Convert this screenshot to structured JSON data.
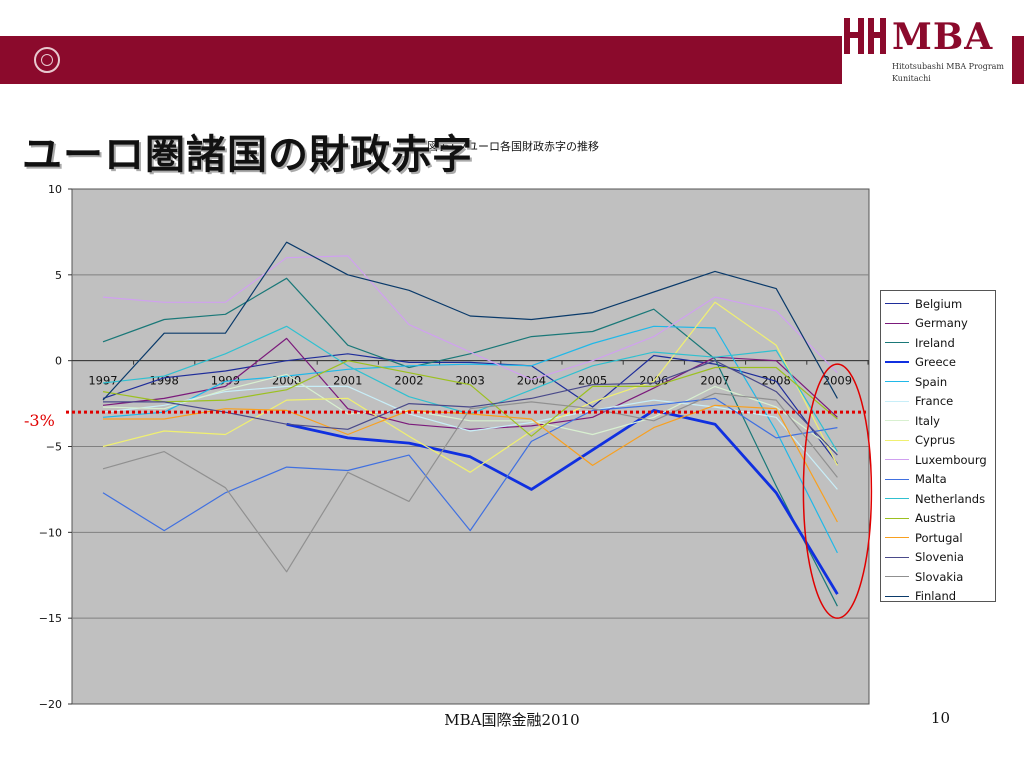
{
  "slide": {
    "title": "ユーロ圏諸国の財政赤字",
    "footer": "MBA国際金融2010",
    "page_number": "10",
    "threshold_label": "-3%"
  },
  "logo": {
    "wordmark": "MBA",
    "line1": "Hitotsubashi MBA Program",
    "line2": "Kunitachi",
    "brand_color": "#8b0a2c"
  },
  "chart_data": {
    "type": "line",
    "title": "図表1-7ユーロ各国財政赤字の推移",
    "x": [
      "1997",
      "1998",
      "1999",
      "2000",
      "2001",
      "2002",
      "2003",
      "2004",
      "2005",
      "2006",
      "2007",
      "2008",
      "2009"
    ],
    "ylim": [
      -20,
      10
    ],
    "yticks": [
      "10",
      "5",
      "0",
      "−5",
      "−10",
      "−15",
      "−20"
    ],
    "grid": true,
    "legend_position": "right",
    "reference_line": {
      "y": -3,
      "color": "#e00000",
      "style": "dotted"
    },
    "highlight": {
      "x": "2009",
      "shape": "ellipse",
      "color": "#e00000"
    },
    "series": [
      {
        "name": "Belgium",
        "color": "#1f2d9a",
        "width": 1.2,
        "values": [
          -2.2,
          -1.0,
          -0.6,
          0.0,
          0.4,
          -0.1,
          -0.1,
          -0.3,
          -2.7,
          0.3,
          -0.2,
          -1.2,
          -6.0
        ]
      },
      {
        "name": "Germany",
        "color": "#7b1a7b",
        "width": 1.2,
        "values": [
          -2.6,
          -2.2,
          -1.5,
          1.3,
          -2.8,
          -3.7,
          -4.0,
          -3.8,
          -3.3,
          -1.6,
          0.2,
          0.0,
          -3.3
        ]
      },
      {
        "name": "Ireland",
        "color": "#1a7878",
        "width": 1.2,
        "values": [
          1.1,
          2.4,
          2.7,
          4.8,
          0.9,
          -0.4,
          0.4,
          1.4,
          1.7,
          3.0,
          0.1,
          -7.3,
          -14.3
        ]
      },
      {
        "name": "Greece",
        "color": "#1030e0",
        "width": 2.8,
        "values": [
          null,
          null,
          null,
          -3.7,
          -4.5,
          -4.8,
          -5.6,
          -7.5,
          -5.2,
          -2.9,
          -3.7,
          -7.7,
          -13.6
        ]
      },
      {
        "name": "Spain",
        "color": "#20b8e8",
        "width": 1.2,
        "values": [
          -3.3,
          -3.0,
          -1.2,
          -0.9,
          -0.5,
          -0.3,
          -0.2,
          -0.3,
          1.0,
          2.0,
          1.9,
          -4.1,
          -11.2
        ]
      },
      {
        "name": "France",
        "color": "#c8eef8",
        "width": 1.2,
        "values": [
          -3.0,
          -2.6,
          -1.8,
          -1.5,
          -1.5,
          -3.1,
          -4.1,
          -3.6,
          -2.9,
          -2.3,
          -2.7,
          -3.3,
          -7.5
        ]
      },
      {
        "name": "Italy",
        "color": "#d8f0d0",
        "width": 1.2,
        "values": [
          -2.7,
          -2.8,
          -1.7,
          -0.8,
          -3.1,
          -2.9,
          -3.5,
          -3.5,
          -4.3,
          -3.3,
          -1.5,
          -2.7,
          -5.3
        ]
      },
      {
        "name": "Cyprus",
        "color": "#f0f070",
        "width": 1.2,
        "values": [
          -5.0,
          -4.1,
          -4.3,
          -2.3,
          -2.2,
          -4.4,
          -6.5,
          -4.1,
          -2.4,
          -1.2,
          3.4,
          0.9,
          -6.1
        ]
      },
      {
        "name": "Luxembourg",
        "color": "#d0a0f0",
        "width": 1.2,
        "values": [
          3.7,
          3.4,
          3.4,
          6.0,
          6.1,
          2.1,
          0.5,
          -1.1,
          0.0,
          1.4,
          3.7,
          2.9,
          -0.7
        ]
      },
      {
        "name": "Malta",
        "color": "#4070e0",
        "width": 1.2,
        "values": [
          -7.7,
          -9.9,
          -7.7,
          -6.2,
          -6.4,
          -5.5,
          -9.9,
          -4.7,
          -2.9,
          -2.6,
          -2.2,
          -4.5,
          -3.9
        ]
      },
      {
        "name": "Netherlands",
        "color": "#30c0d0",
        "width": 1.2,
        "values": [
          -1.3,
          -0.9,
          0.4,
          2.0,
          -0.3,
          -2.1,
          -3.1,
          -1.7,
          -0.3,
          0.5,
          0.2,
          0.6,
          -5.3
        ]
      },
      {
        "name": "Austria",
        "color": "#9cc020",
        "width": 1.2,
        "values": [
          -1.8,
          -2.4,
          -2.3,
          -1.7,
          0.0,
          -0.7,
          -1.4,
          -4.4,
          -1.5,
          -1.5,
          -0.4,
          -0.4,
          -3.4
        ]
      },
      {
        "name": "Portugal",
        "color": "#f8a020",
        "width": 1.2,
        "values": [
          -3.4,
          -3.4,
          -2.8,
          -2.9,
          -4.3,
          -2.9,
          -3.1,
          -3.4,
          -6.1,
          -3.9,
          -2.6,
          -2.8,
          -9.4
        ]
      },
      {
        "name": "Slovenia",
        "color": "#4a4a8a",
        "width": 1.2,
        "values": [
          -2.4,
          -2.4,
          -3.0,
          -3.7,
          -4.0,
          -2.5,
          -2.7,
          -2.2,
          -1.4,
          -1.3,
          0.0,
          -1.8,
          -5.5
        ]
      },
      {
        "name": "Slovakia",
        "color": "#909090",
        "width": 1.2,
        "values": [
          -6.3,
          -5.3,
          -7.4,
          -12.3,
          -6.5,
          -8.2,
          -2.8,
          -2.4,
          -2.8,
          -3.5,
          -1.9,
          -2.3,
          -6.8
        ]
      },
      {
        "name": "Finland",
        "color": "#0a3a6a",
        "width": 1.2,
        "values": [
          -2.3,
          1.6,
          1.6,
          6.9,
          5.0,
          4.1,
          2.6,
          2.4,
          2.8,
          4.0,
          5.2,
          4.2,
          -2.2
        ]
      }
    ]
  }
}
